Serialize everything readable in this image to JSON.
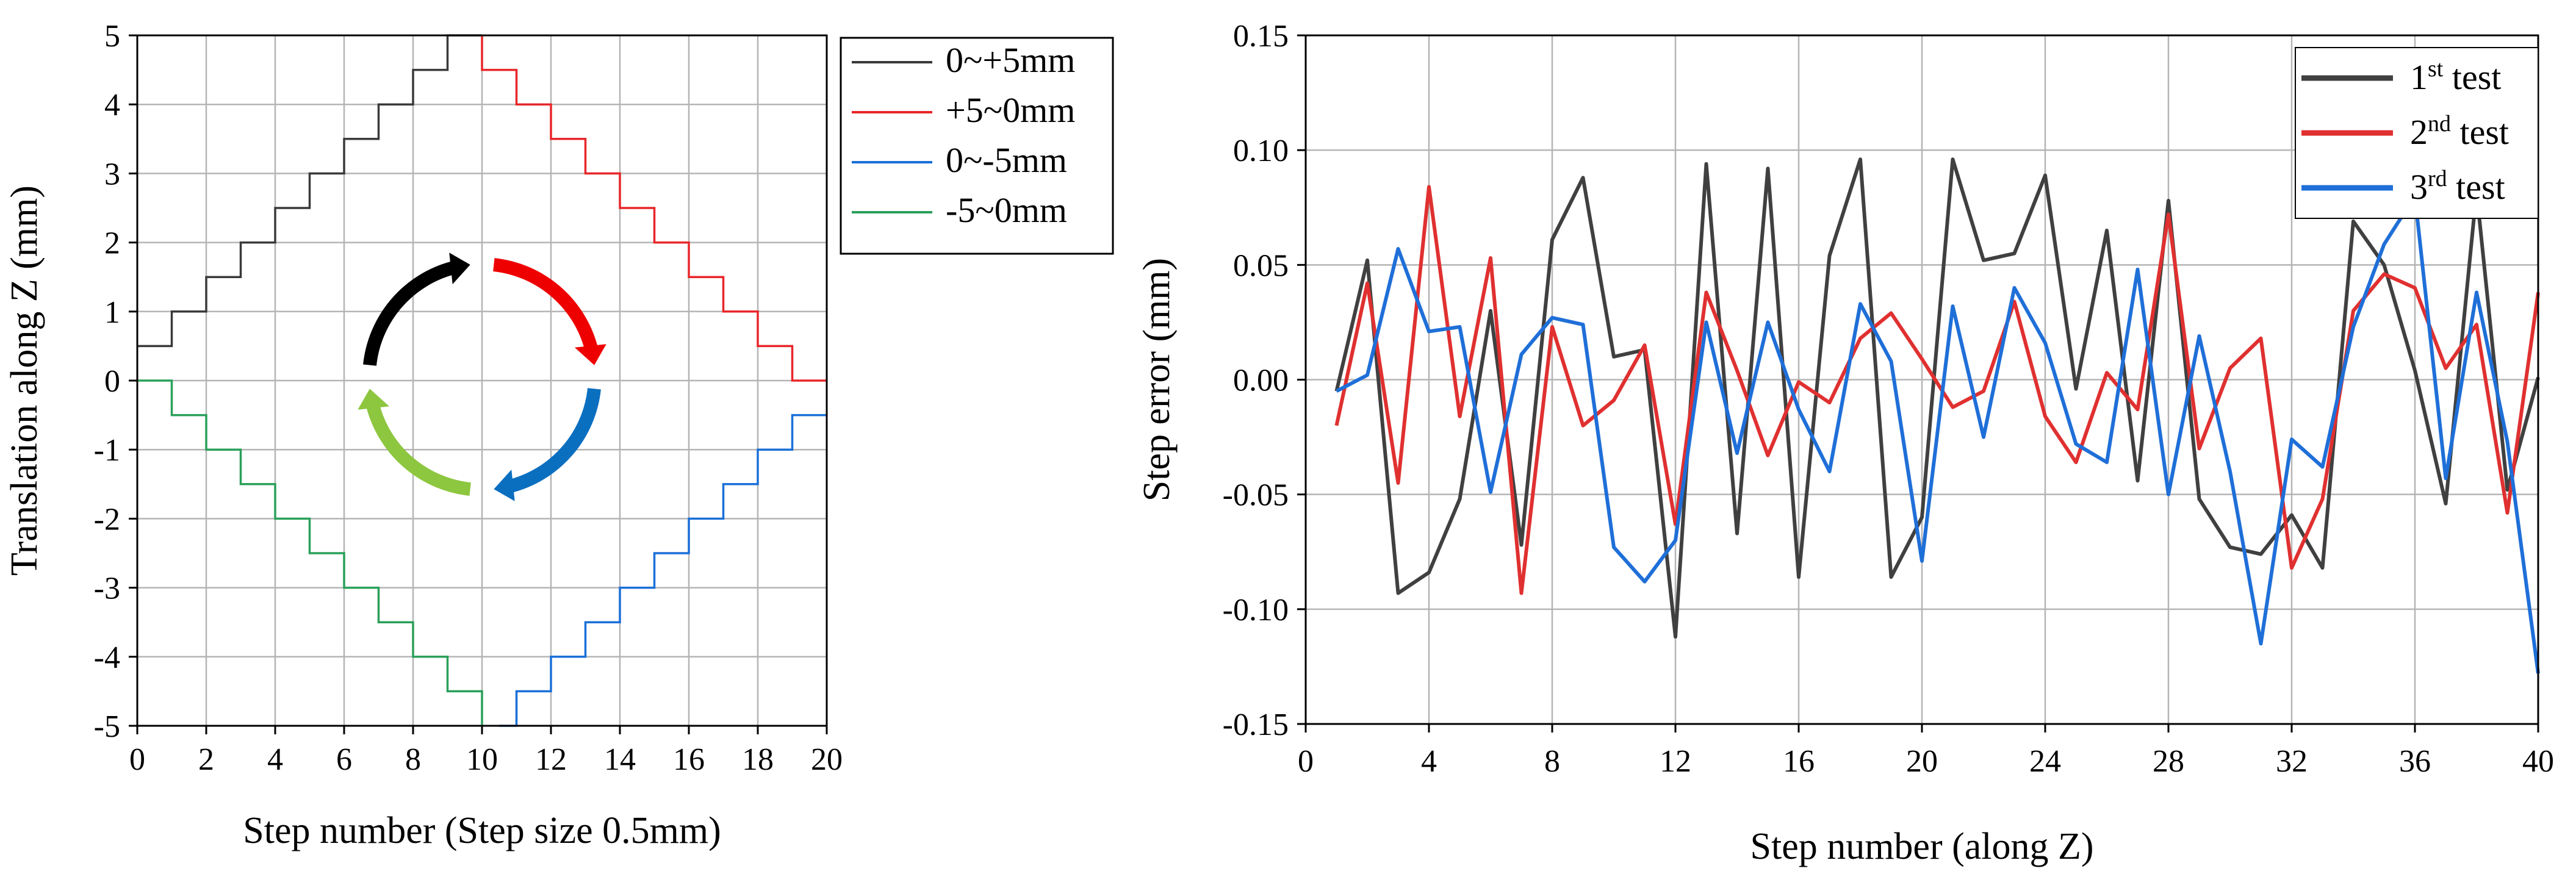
{
  "chart_data": [
    {
      "type": "line",
      "xlabel": "Step number (Step size 0.5mm)",
      "ylabel": "Translation along Z (mm)",
      "xlim": [
        0,
        20
      ],
      "ylim": [
        -5,
        5
      ],
      "xticks": [
        0,
        2,
        4,
        6,
        8,
        10,
        12,
        14,
        16,
        18,
        20
      ],
      "yticks": [
        -5,
        -4,
        -3,
        -2,
        -1,
        0,
        1,
        2,
        3,
        4,
        5
      ],
      "grid": true,
      "step_plot": true,
      "legend_position": "outside-right-top",
      "series": [
        {
          "name": "0~+5mm",
          "color": "#3a3a3a",
          "start": [
            0,
            0.5
          ],
          "end": [
            10,
            5
          ],
          "steps": [
            [
              1,
              0.5,
              1.0
            ],
            [
              2,
              1.0,
              1.5
            ],
            [
              3,
              1.5,
              2.0
            ],
            [
              4,
              2.0,
              2.5
            ],
            [
              5,
              2.5,
              3.0
            ],
            [
              6,
              3.0,
              3.5
            ],
            [
              7,
              3.5,
              4.0
            ],
            [
              8,
              4.0,
              4.5
            ],
            [
              9,
              4.5,
              5.0
            ]
          ]
        },
        {
          "name": "+5~0mm",
          "color": "#e8262a",
          "start": [
            10,
            5
          ],
          "end": [
            20,
            0
          ],
          "steps": [
            [
              10,
              5.0,
              4.5
            ],
            [
              11,
              4.5,
              4.0
            ],
            [
              12,
              4.0,
              3.5
            ],
            [
              13,
              3.5,
              3.0
            ],
            [
              14,
              3.0,
              2.5
            ],
            [
              15,
              2.5,
              2.0
            ],
            [
              16,
              2.0,
              1.5
            ],
            [
              17,
              1.5,
              1.0
            ],
            [
              18,
              1.0,
              0.5
            ],
            [
              19,
              0.5,
              0.0
            ]
          ]
        },
        {
          "name": "0~-5mm",
          "color": "#1a6fd8",
          "start": [
            10.5,
            -5
          ],
          "end": [
            20,
            -0.5
          ],
          "steps": [
            [
              11,
              -5.0,
              -4.5
            ],
            [
              12,
              -4.5,
              -4.0
            ],
            [
              13,
              -4.0,
              -3.5
            ],
            [
              14,
              -3.5,
              -3.0
            ],
            [
              15,
              -3.0,
              -2.5
            ],
            [
              16,
              -2.5,
              -2.0
            ],
            [
              17,
              -2.0,
              -1.5
            ],
            [
              18,
              -1.5,
              -1.0
            ],
            [
              19,
              -1.0,
              -0.5
            ]
          ]
        },
        {
          "name": "-5~0mm",
          "color": "#2aa05a",
          "start": [
            0,
            0
          ],
          "end": [
            10,
            -5
          ],
          "steps": [
            [
              1,
              0.0,
              -0.5
            ],
            [
              2,
              -0.5,
              -1.0
            ],
            [
              3,
              -1.0,
              -1.5
            ],
            [
              4,
              -1.5,
              -2.0
            ],
            [
              5,
              -2.0,
              -2.5
            ],
            [
              6,
              -2.5,
              -3.0
            ],
            [
              7,
              -3.0,
              -3.5
            ],
            [
              8,
              -3.5,
              -4.0
            ],
            [
              9,
              -4.0,
              -4.5
            ],
            [
              10,
              -4.5,
              -5.0
            ]
          ]
        }
      ],
      "cycle_arrows": [
        {
          "color": "#000000",
          "from_deg": 180,
          "to_deg": 270
        },
        {
          "color": "#ee0000",
          "from_deg": 270,
          "to_deg": 360
        },
        {
          "color": "#0b6fc0",
          "from_deg": 0,
          "to_deg": 90
        },
        {
          "color": "#8dc63f",
          "from_deg": 90,
          "to_deg": 180
        }
      ]
    },
    {
      "type": "line",
      "xlabel": "Step number (along Z)",
      "ylabel": "Step error (mm)",
      "xlim": [
        0,
        40
      ],
      "ylim": [
        -0.15,
        0.15
      ],
      "xticks": [
        0,
        4,
        8,
        12,
        16,
        20,
        24,
        28,
        32,
        36,
        40
      ],
      "xtick_labels": [
        "0",
        "4",
        "8",
        "12",
        "16",
        "20",
        "24",
        "28",
        "32",
        "36",
        "40"
      ],
      "yticks": [
        -0.15,
        -0.1,
        -0.05,
        0,
        0.05,
        0.1,
        0.15
      ],
      "ytick_labels": [
        "-0.15",
        "-0.10",
        "-0.05",
        "0.00",
        "0.05",
        "0.10",
        "0.15"
      ],
      "grid": true,
      "legend_position": "top-right",
      "series": [
        {
          "name": "1st test",
          "legend_base": "1",
          "legend_sup": "st",
          "legend_rest": " test",
          "color": "#404040",
          "x": [
            1,
            2,
            3,
            4,
            5,
            6,
            7,
            8,
            9,
            10,
            11,
            12,
            13,
            14,
            15,
            16,
            17,
            18,
            19,
            20,
            21,
            22,
            23,
            24,
            25,
            26,
            27,
            28,
            29,
            30,
            31,
            32,
            33,
            34,
            35,
            36,
            37,
            38,
            39,
            40
          ],
          "y": [
            -0.005,
            0.052,
            -0.093,
            -0.084,
            -0.052,
            0.03,
            -0.072,
            0.061,
            0.088,
            0.01,
            0.013,
            -0.112,
            0.094,
            -0.067,
            0.092,
            -0.086,
            0.054,
            0.096,
            -0.086,
            -0.06,
            0.096,
            0.052,
            0.055,
            0.089,
            -0.004,
            0.065,
            -0.044,
            0.078,
            -0.052,
            -0.073,
            -0.076,
            -0.059,
            -0.082,
            0.069,
            0.05,
            0.004,
            -0.054,
            0.082,
            -0.048,
            0.001
          ]
        },
        {
          "name": "2nd test",
          "legend_base": "2",
          "legend_sup": "nd",
          "legend_rest": " test",
          "color": "#e03030",
          "x": [
            1,
            2,
            3,
            4,
            5,
            6,
            7,
            8,
            9,
            10,
            11,
            12,
            13,
            14,
            15,
            16,
            17,
            18,
            19,
            20,
            21,
            22,
            23,
            24,
            25,
            26,
            27,
            28,
            29,
            30,
            31,
            32,
            33,
            34,
            35,
            36,
            37,
            38,
            39,
            40
          ],
          "y": [
            -0.02,
            0.042,
            -0.045,
            0.084,
            -0.016,
            0.053,
            -0.093,
            0.023,
            -0.02,
            -0.009,
            0.015,
            -0.063,
            0.038,
            0.004,
            -0.033,
            -0.001,
            -0.01,
            0.018,
            0.029,
            0.009,
            -0.012,
            -0.005,
            0.034,
            -0.016,
            -0.036,
            0.003,
            -0.013,
            0.072,
            -0.03,
            0.005,
            0.018,
            -0.082,
            -0.052,
            0.03,
            0.046,
            0.04,
            0.005,
            0.024,
            -0.058,
            0.038
          ]
        },
        {
          "name": "3rd test",
          "legend_base": "3",
          "legend_sup": "rd",
          "legend_rest": " test",
          "color": "#1f6fd8",
          "x": [
            1,
            2,
            3,
            4,
            5,
            6,
            7,
            8,
            9,
            10,
            11,
            12,
            13,
            14,
            15,
            16,
            17,
            18,
            19,
            20,
            21,
            22,
            23,
            24,
            25,
            26,
            27,
            28,
            29,
            30,
            31,
            32,
            33,
            34,
            35,
            36,
            37,
            38,
            39,
            40
          ],
          "y": [
            -0.005,
            0.002,
            0.057,
            0.021,
            0.023,
            -0.049,
            0.011,
            0.027,
            0.024,
            -0.073,
            -0.088,
            -0.07,
            0.025,
            -0.032,
            0.025,
            -0.013,
            -0.04,
            0.033,
            0.008,
            -0.079,
            0.032,
            -0.025,
            0.04,
            0.016,
            -0.028,
            -0.036,
            0.048,
            -0.05,
            0.019,
            -0.04,
            -0.115,
            -0.026,
            -0.038,
            0.023,
            0.059,
            0.08,
            -0.043,
            0.038,
            -0.027,
            -0.128
          ]
        }
      ]
    }
  ]
}
